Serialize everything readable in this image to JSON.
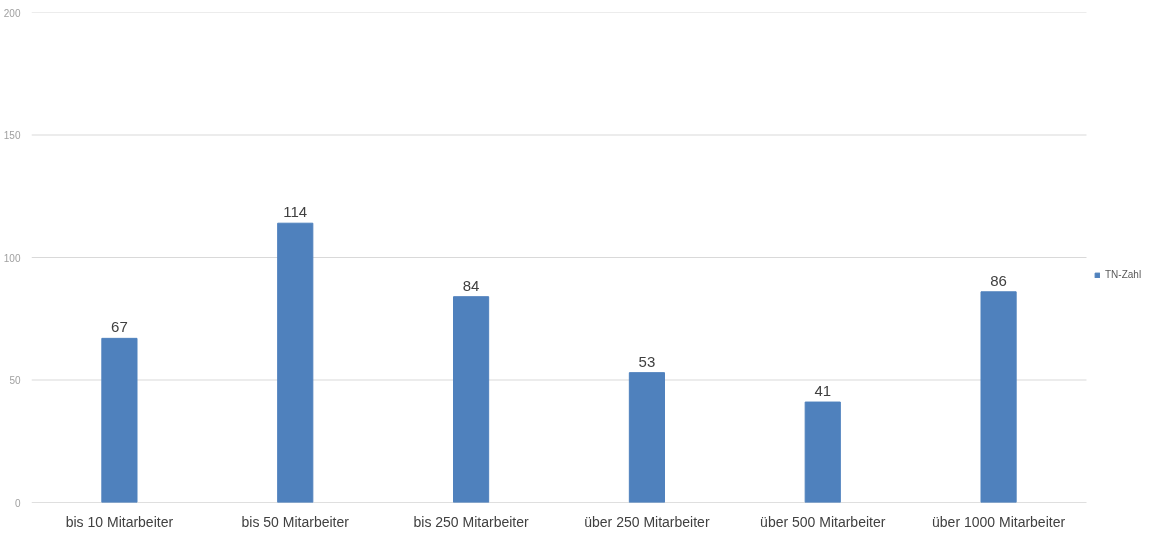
{
  "chart_data": {
    "type": "bar",
    "categories": [
      "bis 10 Mitarbeiter",
      "bis 50 Mitarbeiter",
      "bis 250 Mitarbeiter",
      "über 250 Mitarbeiter",
      "über 500 Mitarbeiter",
      "über 1000 Mitarbeiter"
    ],
    "series": [
      {
        "name": "TN-Zahl",
        "color": "#4f81bd",
        "values": [
          67,
          114,
          84,
          53,
          41,
          86
        ]
      }
    ],
    "ylim": [
      0,
      200
    ],
    "yticks": [
      0,
      50,
      100,
      150,
      200
    ],
    "grid": "y",
    "legend": "right",
    "data_labels": true
  }
}
